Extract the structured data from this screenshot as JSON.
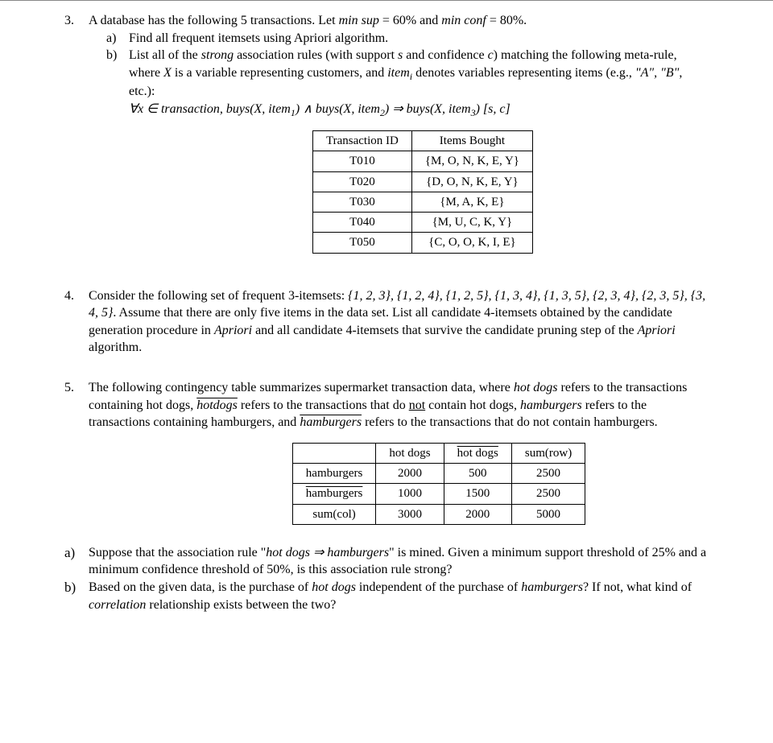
{
  "q3": {
    "num": "3.",
    "intro_pre": "A database has the following 5 transactions. Let ",
    "intro_minsup_lbl": "min sup",
    "intro_minsup_val": " = 60% and ",
    "intro_minconf_lbl": "min conf",
    "intro_minconf_val": " = 80%.",
    "a_label": "a)",
    "a_text": "Find all frequent itemsets using Apriori algorithm.",
    "b_label": "b)",
    "b_line1_pre": "List all of the ",
    "b_strong": "strong",
    "b_line1_mid": " association rules (with support ",
    "b_s": "s",
    "b_line1_mid2": " and confidence ",
    "b_c": "c",
    "b_line1_post": ") matching the following meta-rule, where ",
    "b_X": "X",
    "b_line1_post2": " is a variable representing customers, and ",
    "b_itemi": "item",
    "b_i": "i",
    "b_line1_post3": " denotes variables representing items (e.g., ",
    "b_A": "\"A\"",
    "b_comma": ", ",
    "b_B": "\"B\"",
    "b_etc": ", etc.):",
    "b_rule_forall": "∀x ∈",
    "b_rule_trans": " transaction, buys(X, item",
    "b_rule_1": "1",
    "b_rule_and": ") ∧ buys(X, item",
    "b_rule_2": "2",
    "b_rule_imp": ") ⇒ buys(X, item",
    "b_rule_3": "3",
    "b_rule_sc": ") [s, c]",
    "table": {
      "columns": [
        "Transaction ID",
        "Items Bought"
      ],
      "rows": [
        [
          "T010",
          "{M, O, N, K, E, Y}"
        ],
        [
          "T020",
          "{D, O, N, K, E, Y}"
        ],
        [
          "T030",
          "{M, A, K, E}"
        ],
        [
          "T040",
          "{M, U, C, K, Y}"
        ],
        [
          "T050",
          "{C, O, O, K, I, E}"
        ]
      ]
    }
  },
  "q4": {
    "num": "4.",
    "text_pre": "Consider the following set of frequent 3-itemsets:  ",
    "sets": "{1, 2, 3}, {1, 2, 4}, {1, 2, 5}, {1, 3, 4}, {1, 3, 5}, {2, 3, 4}, {2, 3, 5}, {3, 4, 5}",
    "text_mid": ". Assume that there are only five items in the data set. List all candidate 4-itemsets obtained by the candidate generation procedure in ",
    "apriori1": "Apriori",
    "text_mid2": " and all candidate 4-itemsets that survive the candidate pruning step of the ",
    "apriori2": "Apriori",
    "text_post": " algorithm."
  },
  "q5": {
    "num": "5.",
    "intro_pre": "The following contingency table summarizes supermarket transaction data, where ",
    "hd1": "hot dogs",
    "intro_mid1": " refers to the transactions containing hot dogs, ",
    "hdbar": "hotdogs",
    "intro_mid2": " refers to the transactions that do ",
    "not1": "not",
    "intro_mid2b": " contain hot dogs, ",
    "hb1": "hamburgers",
    "intro_mid3": " refers to the transactions containing hamburgers, and ",
    "hbbar": "hamburgers",
    "intro_mid4": " refers to the transactions that do not contain hamburgers.",
    "table": {
      "columns": [
        "",
        "hot dogs",
        "hot dogs",
        "sum(row)"
      ],
      "col_overline": [
        false,
        false,
        true,
        false
      ],
      "rows": [
        {
          "label": "hamburgers",
          "overline": false,
          "cells": [
            "2000",
            "500",
            "2500"
          ]
        },
        {
          "label": "hamburgers",
          "overline": true,
          "cells": [
            "1000",
            "1500",
            "2500"
          ]
        },
        {
          "label": "sum(col)",
          "overline": false,
          "cells": [
            "3000",
            "2000",
            "5000"
          ]
        }
      ]
    },
    "a_label": "a)",
    "a_pre": "Suppose that the association rule \"",
    "a_rule": "hot dogs ⇒ hamburgers",
    "a_post": "\" is mined. Given a minimum support threshold of 25% and a minimum confidence threshold of 50%, is this association rule strong?",
    "b_label": "b)",
    "b_pre": "Based on the given data, is the purchase of ",
    "b_hd": "hot dogs",
    "b_mid": " independent of the purchase of ",
    "b_hb": "hamburgers",
    "b_mid2": "? If not, what kind of ",
    "b_corr": "correlation",
    "b_post": " relationship exists between the two?"
  }
}
